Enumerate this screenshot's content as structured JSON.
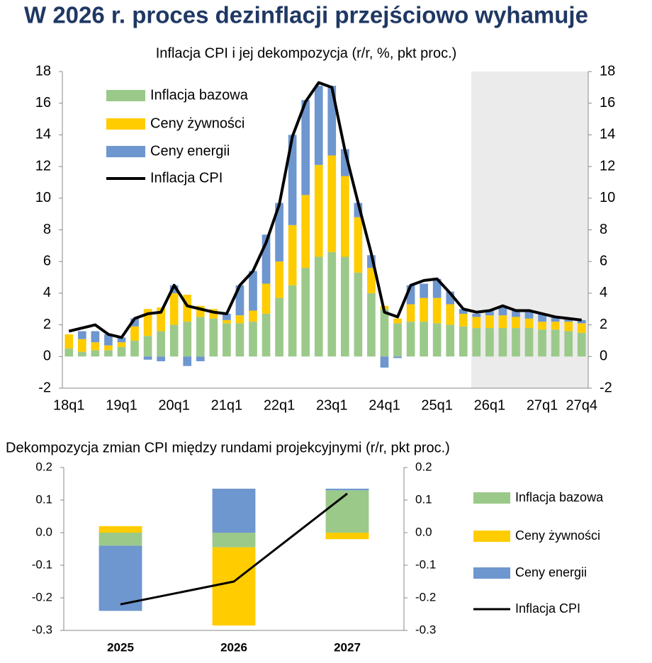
{
  "title": "W 2026 r. proces dezinflacji przejściowo wyhamuje",
  "chart_data": [
    {
      "type": "bar",
      "stacked": true,
      "title": "Inflacja CPI i jej dekompozycja (r/r, %, pkt proc.)",
      "categories": [
        "18q1",
        null,
        null,
        null,
        "19q1",
        null,
        null,
        null,
        "20q1",
        null,
        null,
        null,
        "21q1",
        null,
        null,
        null,
        "22q1",
        null,
        null,
        null,
        "23q1",
        null,
        null,
        null,
        "24q1",
        null,
        null,
        null,
        "25q1",
        null,
        null,
        null,
        "26q1",
        null,
        null,
        null,
        "27q1",
        null,
        null,
        "27q4"
      ],
      "series": [
        {
          "name": "Inflacja bazowa",
          "type": "bar",
          "color": "#9bc98a",
          "values": [
            0.5,
            0.3,
            0.4,
            0.4,
            0.6,
            1.0,
            1.3,
            1.6,
            2.0,
            2.2,
            2.5,
            2.4,
            2.1,
            2.1,
            2.2,
            2.7,
            3.7,
            4.5,
            5.6,
            6.3,
            6.6,
            6.3,
            5.3,
            4.0,
            3.0,
            2.1,
            2.2,
            2.2,
            2.1,
            2.0,
            1.9,
            1.8,
            1.8,
            1.8,
            1.8,
            1.8,
            1.7,
            1.7,
            1.6,
            1.5
          ]
        },
        {
          "name": "Ceny żywności",
          "type": "bar",
          "color": "#ffcc00",
          "values": [
            0.9,
            0.8,
            0.5,
            0.3,
            0.3,
            0.9,
            1.7,
            1.5,
            2.0,
            1.7,
            0.7,
            0.6,
            0.2,
            0.5,
            0.7,
            1.9,
            2.3,
            3.8,
            4.6,
            5.8,
            6.1,
            5.1,
            3.5,
            1.6,
            0.2,
            0.3,
            1.1,
            1.5,
            1.6,
            1.3,
            0.8,
            0.7,
            0.8,
            0.8,
            0.7,
            0.6,
            0.5,
            0.5,
            0.6,
            0.6
          ]
        },
        {
          "name": "Ceny energii",
          "type": "bar",
          "color": "#6e96cf",
          "values": [
            0.0,
            0.5,
            0.7,
            0.7,
            0.3,
            0.5,
            -0.2,
            -0.3,
            0.5,
            -0.6,
            -0.3,
            0.0,
            0.4,
            1.9,
            2.5,
            3.1,
            3.7,
            5.7,
            6.0,
            5.0,
            4.4,
            1.7,
            0.9,
            0.8,
            -0.7,
            -0.1,
            1.2,
            0.9,
            1.2,
            0.8,
            0.3,
            0.2,
            0.3,
            0.5,
            0.4,
            0.5,
            0.5,
            0.3,
            0.2,
            0.2
          ]
        },
        {
          "name": "Inflacja CPI",
          "type": "line",
          "color": "#000000",
          "values": [
            1.6,
            1.8,
            2.0,
            1.4,
            1.2,
            2.4,
            2.7,
            2.8,
            4.5,
            3.2,
            3.0,
            2.8,
            2.7,
            4.5,
            5.4,
            7.2,
            9.6,
            13.9,
            16.1,
            17.3,
            17.0,
            13.0,
            9.7,
            6.5,
            2.8,
            2.5,
            4.5,
            4.8,
            4.9,
            4.0,
            3.0,
            2.8,
            2.9,
            3.2,
            2.9,
            2.9,
            2.7,
            2.5,
            2.4,
            2.3
          ]
        }
      ],
      "ylim": [
        -2,
        18
      ],
      "yticks": [
        -2,
        0,
        2,
        4,
        6,
        8,
        10,
        12,
        14,
        16,
        18
      ],
      "y2lim": [
        -2,
        18
      ],
      "y2ticks": [
        -2,
        0,
        2,
        4,
        6,
        8,
        10,
        12,
        14,
        16,
        18
      ],
      "legend": "upper left",
      "grid": false
    },
    {
      "type": "bar",
      "stacked": true,
      "title": "Dekompozycja zmian CPI między rundami projekcyjnymi (r/r, pkt proc.)",
      "categories": [
        "2025",
        "2026",
        "2027"
      ],
      "series": [
        {
          "name": "Inflacja bazowa",
          "type": "bar",
          "color": "#9bc98a",
          "values": [
            -0.04,
            -0.045,
            0.13
          ]
        },
        {
          "name": "Ceny żywności",
          "type": "bar",
          "color": "#ffcc00",
          "values": [
            0.02,
            -0.24,
            -0.02
          ]
        },
        {
          "name": "Ceny energii",
          "type": "bar",
          "color": "#6e96cf",
          "values": [
            -0.2,
            0.135,
            0.005
          ]
        },
        {
          "name": "Inflacja CPI",
          "type": "line",
          "color": "#000000",
          "values": [
            -0.22,
            -0.15,
            0.12
          ]
        }
      ],
      "ylim": [
        -0.3,
        0.2
      ],
      "yticks": [
        -0.3,
        -0.2,
        -0.1,
        {
          "value": 0,
          "label": "0.0"
        },
        0.1,
        0.2
      ],
      "y2lim": [
        -0.3,
        0.2
      ],
      "y2ticks": [
        -0.3,
        -0.2,
        -0.1,
        {
          "value": 0,
          "label": "0.0"
        },
        0.1,
        0.2
      ],
      "legend": "right",
      "grid": false
    }
  ]
}
